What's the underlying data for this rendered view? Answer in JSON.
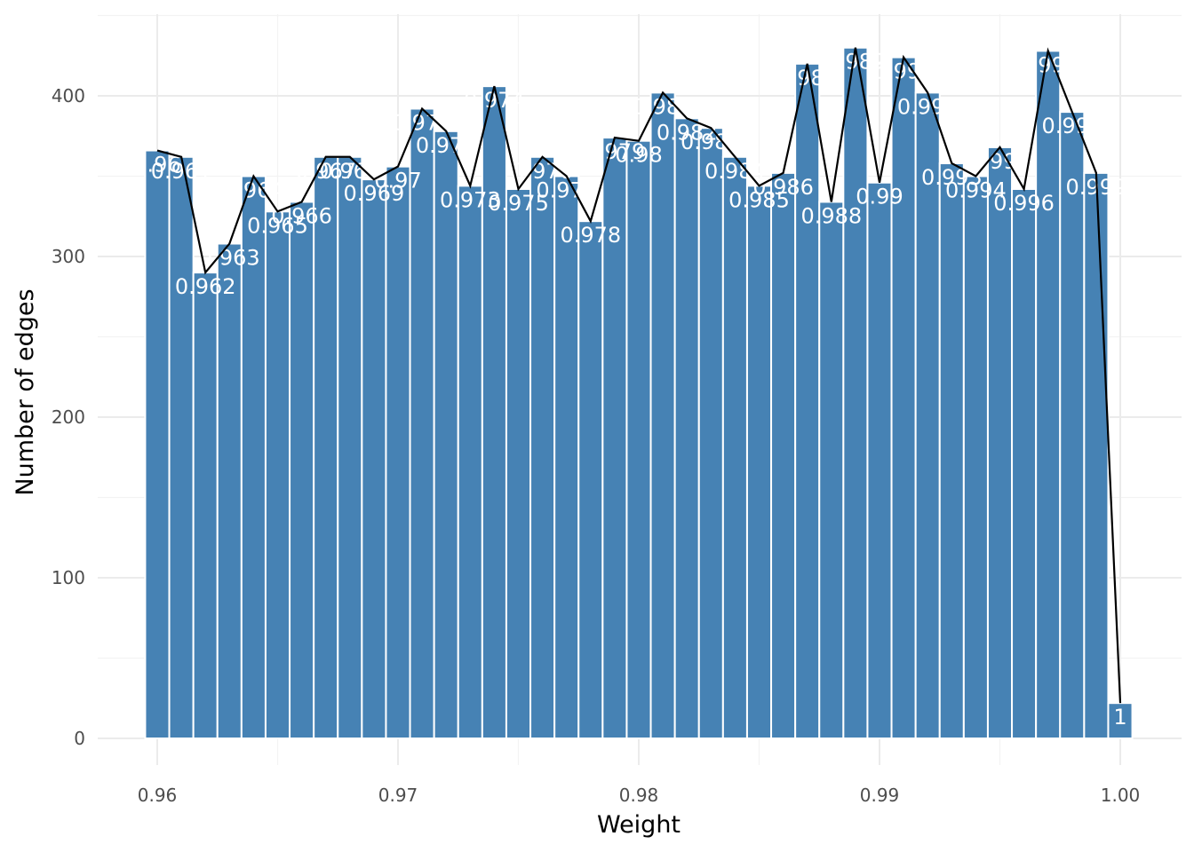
{
  "chart_data": {
    "type": "bar",
    "xlabel": "Weight",
    "ylabel": "Number of edges",
    "xlim": [
      0.9575,
      1.0025
    ],
    "ylim": [
      -10,
      450
    ],
    "x_ticks": [
      0.96,
      0.97,
      0.98,
      0.99,
      1.0
    ],
    "x_tick_labels": [
      "0.96",
      "0.97",
      "0.98",
      "0.99",
      "1.00"
    ],
    "y_ticks": [
      0,
      100,
      200,
      300,
      400
    ],
    "y_tick_labels": [
      "0",
      "100",
      "200",
      "300",
      "400"
    ],
    "grid": true,
    "bar_color": "#4682b4",
    "line_color": "#000000",
    "bins": [
      {
        "x": 0.96,
        "count": 366,
        "label": "0.96"
      },
      {
        "x": 0.961,
        "count": 362,
        "label": "0.961"
      },
      {
        "x": 0.962,
        "count": 290,
        "label": "0.962"
      },
      {
        "x": 0.963,
        "count": 308,
        "label": "0.963"
      },
      {
        "x": 0.964,
        "count": 350,
        "label": "0.964"
      },
      {
        "x": 0.965,
        "count": 328,
        "label": "0.965"
      },
      {
        "x": 0.966,
        "count": 334,
        "label": "0.966"
      },
      {
        "x": 0.967,
        "count": 362,
        "label": "0.967"
      },
      {
        "x": 0.968,
        "count": 362,
        "label": "0.968"
      },
      {
        "x": 0.969,
        "count": 348,
        "label": "0.969"
      },
      {
        "x": 0.97,
        "count": 356,
        "label": "0.97"
      },
      {
        "x": 0.971,
        "count": 392,
        "label": "0.971"
      },
      {
        "x": 0.972,
        "count": 378,
        "label": "0.972"
      },
      {
        "x": 0.973,
        "count": 344,
        "label": "0.973"
      },
      {
        "x": 0.974,
        "count": 406,
        "label": "0.974"
      },
      {
        "x": 0.975,
        "count": 342,
        "label": "0.975"
      },
      {
        "x": 0.976,
        "count": 362,
        "label": "0.976"
      },
      {
        "x": 0.977,
        "count": 350,
        "label": "0.977"
      },
      {
        "x": 0.978,
        "count": 322,
        "label": "0.978"
      },
      {
        "x": 0.979,
        "count": 374,
        "label": "0.979"
      },
      {
        "x": 0.98,
        "count": 372,
        "label": "0.98"
      },
      {
        "x": 0.981,
        "count": 402,
        "label": "0.981"
      },
      {
        "x": 0.982,
        "count": 386,
        "label": "0.982"
      },
      {
        "x": 0.983,
        "count": 380,
        "label": "0.983"
      },
      {
        "x": 0.984,
        "count": 362,
        "label": "0.984"
      },
      {
        "x": 0.985,
        "count": 344,
        "label": "0.985"
      },
      {
        "x": 0.986,
        "count": 352,
        "label": "0.986"
      },
      {
        "x": 0.987,
        "count": 420,
        "label": "0.987"
      },
      {
        "x": 0.988,
        "count": 334,
        "label": "0.988"
      },
      {
        "x": 0.989,
        "count": 430,
        "label": "0.989"
      },
      {
        "x": 0.99,
        "count": 346,
        "label": "0.99"
      },
      {
        "x": 0.991,
        "count": 424,
        "label": "0.991"
      },
      {
        "x": 0.992,
        "count": 402,
        "label": "0.992"
      },
      {
        "x": 0.993,
        "count": 358,
        "label": "0.993"
      },
      {
        "x": 0.994,
        "count": 350,
        "label": "0.994"
      },
      {
        "x": 0.995,
        "count": 368,
        "label": "0.995"
      },
      {
        "x": 0.996,
        "count": 342,
        "label": "0.996"
      },
      {
        "x": 0.997,
        "count": 428,
        "label": "0.997"
      },
      {
        "x": 0.998,
        "count": 390,
        "label": "0.998"
      },
      {
        "x": 0.999,
        "count": 352,
        "label": "0.999"
      },
      {
        "x": 1.0,
        "count": 22,
        "label": "1"
      }
    ]
  }
}
